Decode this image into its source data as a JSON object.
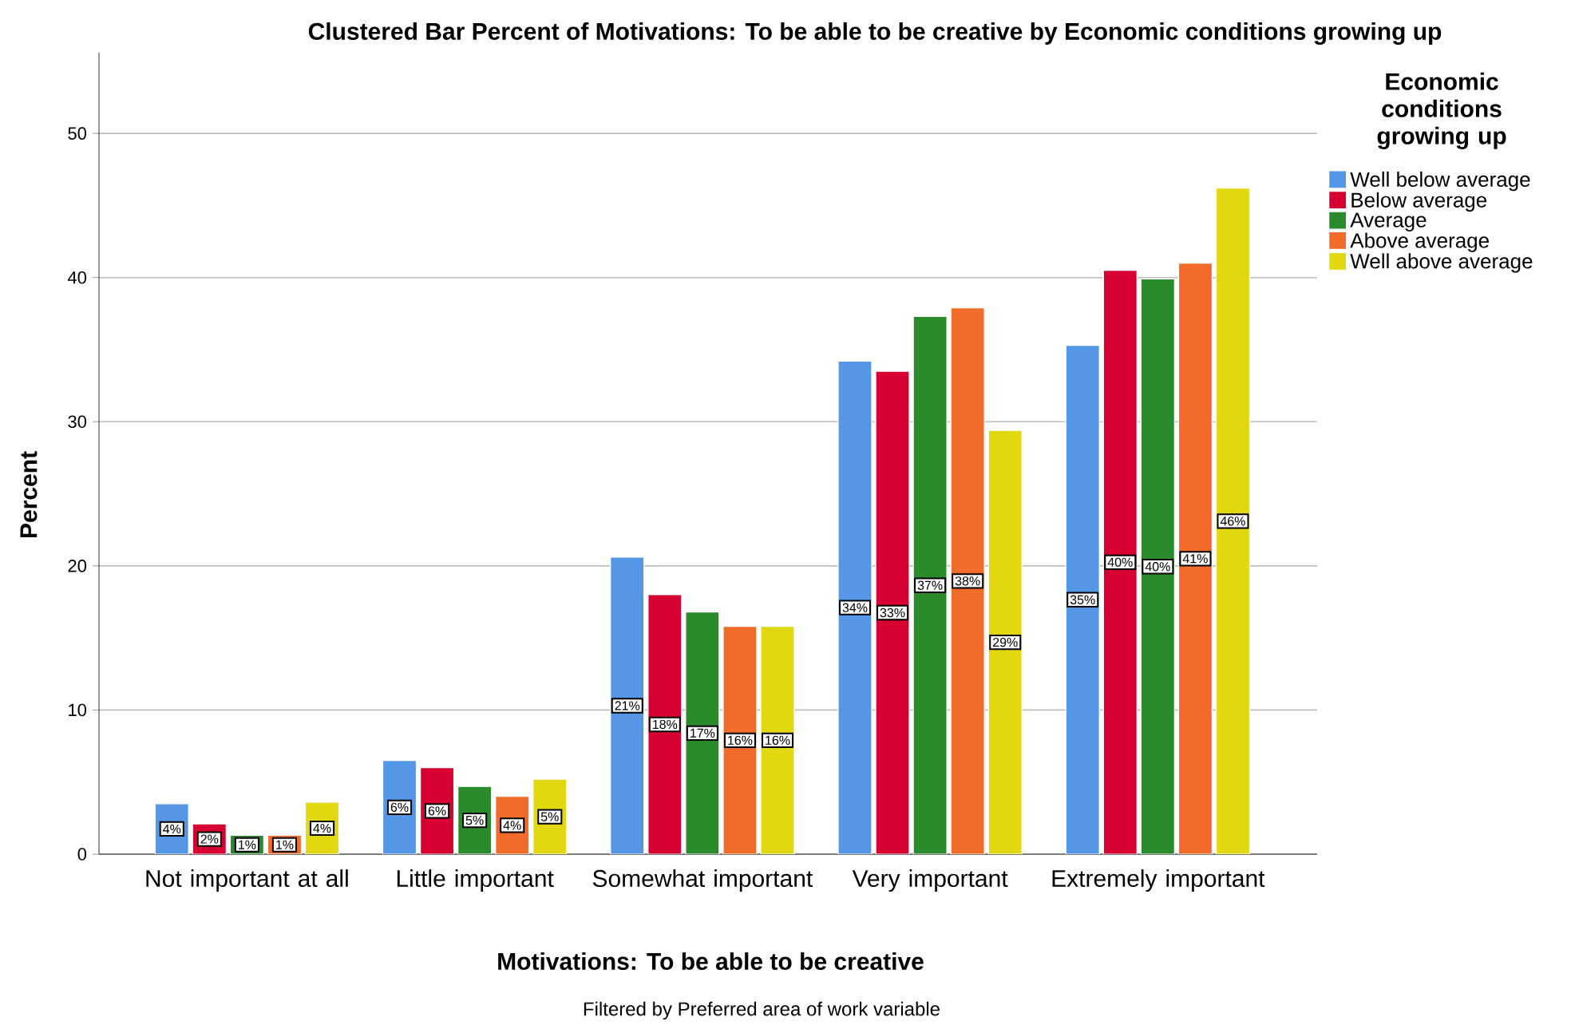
{
  "chart_data": {
    "type": "bar",
    "title": "Clustered Bar Percent of Motivations: To be able to be creative by Economic conditions growing up",
    "xlabel": "Motivations: To be able to be creative",
    "ylabel": "Percent",
    "legend_title": "Economic conditions growing up",
    "annotations": [
      "Filtered by Preferred area of work variable"
    ],
    "categories": [
      "Not important at all",
      "Little important",
      "Somewhat important",
      "Very important",
      "Extremely important"
    ],
    "series": [
      {
        "name": "Well below average",
        "color": "#5596e6",
        "values": [
          3.5,
          6.5,
          20.6,
          34.2,
          35.3
        ],
        "value_labels": [
          "4%",
          "6%",
          "21%",
          "34%",
          "35%"
        ]
      },
      {
        "name": "Below average",
        "color": "#d60032",
        "values": [
          2.1,
          6.0,
          18.0,
          33.5,
          40.5
        ],
        "value_labels": [
          "2%",
          "6%",
          "18%",
          "33%",
          "40%"
        ]
      },
      {
        "name": "Average",
        "color": "#2b8a2b",
        "values": [
          1.3,
          4.7,
          16.8,
          37.3,
          39.9
        ],
        "value_labels": [
          "1%",
          "5%",
          "17%",
          "37%",
          "40%"
        ]
      },
      {
        "name": "Above average",
        "color": "#f26b2a",
        "values": [
          1.3,
          4.0,
          15.8,
          37.9,
          41.0
        ],
        "value_labels": [
          "1%",
          "4%",
          "16%",
          "38%",
          "41%"
        ]
      },
      {
        "name": "Well above average",
        "color": "#e2d811",
        "values": [
          3.6,
          5.2,
          15.8,
          29.4,
          46.2
        ],
        "value_labels": [
          "4%",
          "5%",
          "16%",
          "29%",
          "46%"
        ]
      }
    ],
    "ylim": [
      0,
      55.6
    ],
    "yticks": [
      0,
      10,
      20,
      30,
      40,
      50
    ],
    "grid": "y",
    "legend": "right"
  }
}
